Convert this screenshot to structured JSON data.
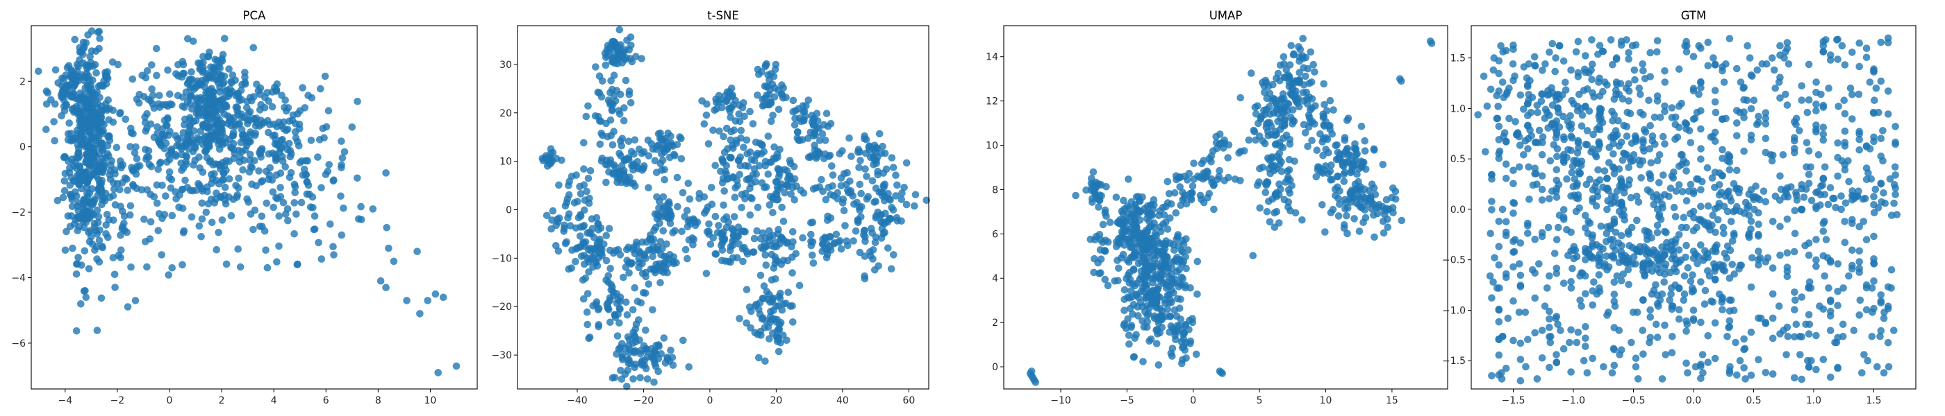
{
  "style": {
    "point_color": "#1f77b4",
    "point_opacity": 0.8,
    "background": "#ffffff"
  },
  "chart_data": [
    {
      "type": "scatter",
      "title": "PCA",
      "xlabel": "",
      "ylabel": "",
      "xlim": [
        -5.3,
        11.8
      ],
      "ylim": [
        -7.4,
        3.7
      ],
      "xticks": [
        -4,
        -2,
        0,
        2,
        4,
        6,
        8,
        10
      ],
      "yticks": [
        -6,
        -4,
        -2,
        0,
        2
      ],
      "grid": false,
      "clusters": [
        {
          "cx": -3.1,
          "cy": -0.2,
          "sx": 0.45,
          "sy": 1.6,
          "n": 420
        },
        {
          "cx": -3.6,
          "cy": 1.8,
          "sx": 0.5,
          "sy": 0.5,
          "n": 80
        },
        {
          "cx": 1.6,
          "cy": 1.2,
          "sx": 0.8,
          "sy": 0.9,
          "n": 260
        },
        {
          "cx": 0.2,
          "cy": 0.4,
          "sx": 1.3,
          "sy": 1.1,
          "n": 160
        },
        {
          "cx": 3.8,
          "cy": 0.3,
          "sx": 1.3,
          "sy": 0.9,
          "n": 140
        },
        {
          "cx": 5.2,
          "cy": -1.4,
          "sx": 1.2,
          "sy": 1.0,
          "n": 70
        },
        {
          "cx": -1.5,
          "cy": -1.8,
          "sx": 1.0,
          "sy": 1.3,
          "n": 90
        },
        {
          "cx": 2.2,
          "cy": -1.2,
          "sx": 1.4,
          "sy": 1.0,
          "n": 80
        }
      ],
      "points": [
        [
          -3.2,
          -4.6
        ],
        [
          -3.4,
          -4.8
        ],
        [
          -2.1,
          -3.9
        ],
        [
          0.1,
          -3.7
        ],
        [
          -0.3,
          -3.3
        ],
        [
          4.9,
          -3.6
        ],
        [
          8.1,
          -4.1
        ],
        [
          8.3,
          -4.3
        ],
        [
          8.6,
          -3.5
        ],
        [
          9.1,
          -4.7
        ],
        [
          9.6,
          -5.1
        ],
        [
          10.2,
          -4.5
        ],
        [
          9.9,
          -4.7
        ],
        [
          10.3,
          -6.9
        ],
        [
          11.0,
          -6.7
        ],
        [
          10.5,
          -4.6
        ],
        [
          9.5,
          -3.2
        ],
        [
          8.4,
          -3.1
        ],
        [
          6.6,
          -2.7
        ],
        [
          6.3,
          -3.3
        ],
        [
          7.8,
          -1.9
        ],
        [
          8.3,
          -0.8
        ],
        [
          7.0,
          0.6
        ],
        [
          6.1,
          1.1
        ],
        [
          0.7,
          3.3
        ],
        [
          -2.7,
          3.0
        ],
        [
          0.5,
          2.6
        ],
        [
          -0.5,
          3.0
        ]
      ]
    },
    {
      "type": "scatter",
      "title": "t-SNE",
      "xlabel": "",
      "ylabel": "",
      "xlim": [
        -58,
        66
      ],
      "ylim": [
        -37,
        38
      ],
      "xticks": [
        -40,
        -20,
        0,
        20,
        40,
        60
      ],
      "yticks": [
        -30,
        -20,
        -10,
        0,
        10,
        20,
        30
      ],
      "grid": false,
      "clusters": [
        {
          "cx": -28,
          "cy": 32,
          "sx": 2.5,
          "sy": 2,
          "n": 50
        },
        {
          "cx": -30,
          "cy": 22,
          "sx": 3,
          "sy": 3,
          "n": 40
        },
        {
          "cx": -26,
          "cy": 10,
          "sx": 4,
          "sy": 3,
          "n": 70
        },
        {
          "cx": -14,
          "cy": 12,
          "sx": 2.5,
          "sy": 2.5,
          "n": 40
        },
        {
          "cx": -49,
          "cy": 10.5,
          "sx": 1.5,
          "sy": 1,
          "n": 20
        },
        {
          "cx": -42,
          "cy": 0,
          "sx": 3,
          "sy": 4,
          "n": 40
        },
        {
          "cx": -36,
          "cy": -8,
          "sx": 4,
          "sy": 3,
          "n": 70
        },
        {
          "cx": -18,
          "cy": -10,
          "sx": 4,
          "sy": 3,
          "n": 80
        },
        {
          "cx": -14,
          "cy": 0,
          "sx": 2.5,
          "sy": 2.5,
          "n": 30
        },
        {
          "cx": -28,
          "cy": -20,
          "sx": 5,
          "sy": 3,
          "n": 50
        },
        {
          "cx": -20,
          "cy": -30,
          "sx": 5,
          "sy": 3,
          "n": 80
        },
        {
          "cx": -5,
          "cy": -2,
          "sx": 3,
          "sy": 3,
          "n": 30
        },
        {
          "cx": 5,
          "cy": -6,
          "sx": 4,
          "sy": 3,
          "n": 50
        },
        {
          "cx": 8,
          "cy": 10,
          "sx": 4,
          "sy": 5,
          "n": 80
        },
        {
          "cx": 5,
          "cy": 22,
          "sx": 3,
          "sy": 1.5,
          "n": 30
        },
        {
          "cx": 18,
          "cy": 25,
          "sx": 2,
          "sy": 3,
          "n": 40
        },
        {
          "cx": 20,
          "cy": 6,
          "sx": 4,
          "sy": 4,
          "n": 70
        },
        {
          "cx": 18,
          "cy": -8,
          "sx": 4,
          "sy": 3,
          "n": 50
        },
        {
          "cx": 18,
          "cy": -22,
          "sx": 4,
          "sy": 4,
          "n": 70
        },
        {
          "cx": 32,
          "cy": 14,
          "sx": 3,
          "sy": 3,
          "n": 40
        },
        {
          "cx": 38,
          "cy": 5,
          "sx": 3,
          "sy": 3,
          "n": 30
        },
        {
          "cx": 35,
          "cy": -6,
          "sx": 3,
          "sy": 3,
          "n": 30
        },
        {
          "cx": 48,
          "cy": -4,
          "sx": 4,
          "sy": 5,
          "n": 50
        },
        {
          "cx": 55,
          "cy": 3,
          "sx": 4,
          "sy": 4,
          "n": 50
        },
        {
          "cx": 48,
          "cy": 12,
          "sx": 3,
          "sy": 2,
          "n": 30
        },
        {
          "cx": 28,
          "cy": 20,
          "sx": 2,
          "sy": 2,
          "n": 20
        }
      ],
      "points": [
        [
          -25,
          35
        ],
        [
          -31,
          33
        ],
        [
          -29,
          34
        ]
      ]
    },
    {
      "type": "scatter",
      "title": "UMAP",
      "xlabel": "",
      "ylabel": "",
      "xlim": [
        -14.3,
        19.2
      ],
      "ylim": [
        -1.0,
        15.4
      ],
      "xticks": [
        -10,
        -5,
        0,
        5,
        10,
        15
      ],
      "yticks": [
        0,
        2,
        4,
        6,
        8,
        10,
        12,
        14
      ],
      "grid": false,
      "clusters": [
        {
          "cx": -4.5,
          "cy": 6.5,
          "sx": 0.9,
          "sy": 0.8,
          "n": 90
        },
        {
          "cx": -3.8,
          "cy": 5.0,
          "sx": 1.0,
          "sy": 1.2,
          "n": 120
        },
        {
          "cx": -3.0,
          "cy": 2.8,
          "sx": 1.1,
          "sy": 1.0,
          "n": 120
        },
        {
          "cx": -1.5,
          "cy": 4.2,
          "sx": 0.8,
          "sy": 1.4,
          "n": 80
        },
        {
          "cx": -1.0,
          "cy": 1.2,
          "sx": 0.7,
          "sy": 0.5,
          "n": 30
        },
        {
          "cx": -7.5,
          "cy": 8.3,
          "sx": 0.5,
          "sy": 0.5,
          "n": 25
        },
        {
          "cx": -6.8,
          "cy": 5.5,
          "sx": 0.5,
          "sy": 0.8,
          "n": 25
        },
        {
          "cx": -1.0,
          "cy": 7.8,
          "sx": 0.8,
          "sy": 0.4,
          "n": 30
        },
        {
          "cx": 1.5,
          "cy": 8.7,
          "sx": 1.0,
          "sy": 0.5,
          "n": 35
        },
        {
          "cx": 2.0,
          "cy": 10.2,
          "sx": 0.3,
          "sy": 0.4,
          "n": 10
        },
        {
          "cx": 6.0,
          "cy": 11.5,
          "sx": 1.0,
          "sy": 0.9,
          "n": 80
        },
        {
          "cx": 7.8,
          "cy": 12.8,
          "sx": 0.6,
          "sy": 1.0,
          "n": 60
        },
        {
          "cx": 6.3,
          "cy": 8.5,
          "sx": 0.8,
          "sy": 1.3,
          "n": 70
        },
        {
          "cx": 9.5,
          "cy": 11.0,
          "sx": 0.8,
          "sy": 0.8,
          "n": 40
        },
        {
          "cx": 11.5,
          "cy": 9.3,
          "sx": 1.1,
          "sy": 0.7,
          "n": 70
        },
        {
          "cx": 13.2,
          "cy": 7.3,
          "sx": 1.1,
          "sy": 0.6,
          "n": 60
        },
        {
          "cx": 11.5,
          "cy": 7.5,
          "sx": 0.8,
          "sy": 0.8,
          "n": 30
        }
      ],
      "points": [
        [
          -12.3,
          -0.3
        ],
        [
          -12.2,
          -0.4
        ],
        [
          -12.1,
          -0.5
        ],
        [
          -12.0,
          -0.6
        ],
        [
          -11.9,
          -0.7
        ],
        [
          -12.2,
          -0.2
        ],
        [
          2.0,
          -0.2
        ],
        [
          2.2,
          -0.3
        ],
        [
          2.1,
          -0.25
        ],
        [
          17.9,
          14.7
        ],
        [
          18.0,
          14.6
        ],
        [
          15.6,
          13.0
        ],
        [
          15.7,
          12.9
        ]
      ]
    },
    {
      "type": "scatter",
      "title": "GTM",
      "xlabel": "",
      "ylabel": "",
      "xlim": [
        -1.85,
        1.85
      ],
      "ylim": [
        -1.78,
        1.82
      ],
      "xticks": [
        -1.5,
        -1.0,
        -0.5,
        0.0,
        0.5,
        1.0,
        1.5
      ],
      "yticks": [
        -1.5,
        -1.0,
        -0.5,
        0.0,
        0.5,
        1.0,
        1.5
      ],
      "grid": false,
      "uniform": {
        "n": 900,
        "snap": 0.06
      },
      "clusters": [
        {
          "cx": -1.0,
          "cy": 0.9,
          "sx": 0.35,
          "sy": 0.3,
          "n": 150
        },
        {
          "cx": -0.6,
          "cy": 0.3,
          "sx": 0.3,
          "sy": 0.3,
          "n": 120
        },
        {
          "cx": -0.4,
          "cy": -0.45,
          "sx": 0.35,
          "sy": 0.12,
          "n": 120
        },
        {
          "cx": 0.9,
          "cy": 0.12,
          "sx": 0.5,
          "sy": 0.08,
          "n": 70
        },
        {
          "cx": 0.1,
          "cy": -0.3,
          "sx": 0.2,
          "sy": 0.4,
          "n": 60
        }
      ],
      "points": []
    }
  ]
}
